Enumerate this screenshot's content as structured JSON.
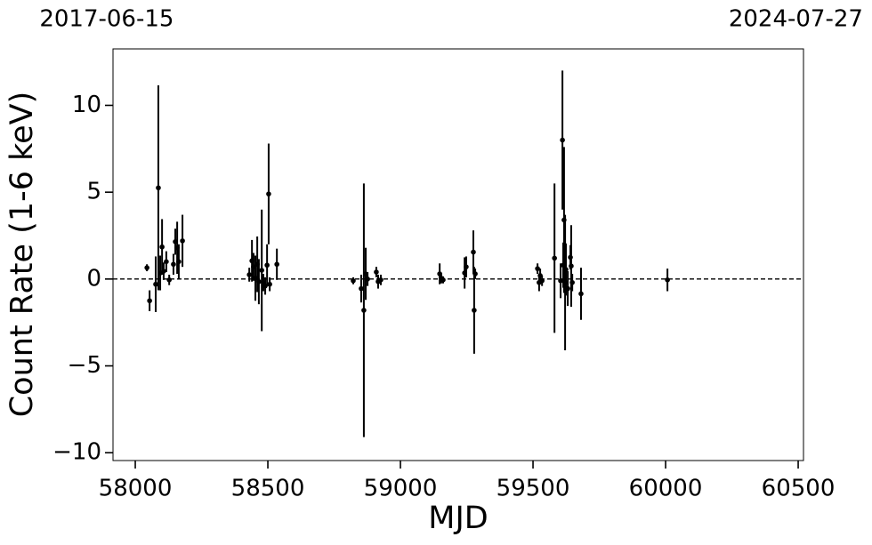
{
  "chart_data": {
    "type": "errorbar-scatter",
    "xlabel": "MJD",
    "ylabel": "Count Rate (1-6 keV)",
    "x": [
      58044,
      58054,
      58077,
      58087,
      58094,
      58101,
      58107,
      58117,
      58128,
      58144,
      58151,
      58158,
      58164,
      58178,
      58430,
      58440,
      58446,
      58453,
      58460,
      58466,
      58477,
      58483,
      58490,
      58497,
      58503,
      58507,
      58534,
      58822,
      58852,
      58862,
      58869,
      58876,
      58909,
      58916,
      58926,
      59148,
      59154,
      59161,
      59242,
      59248,
      59275,
      59278,
      59282,
      59517,
      59523,
      59527,
      59534,
      59581,
      59604,
      59611,
      59614,
      59617,
      59621,
      59624,
      59631,
      59641,
      59644,
      59648,
      59681,
      60007
    ],
    "values": [
      0.65,
      -1.25,
      -0.3,
      5.25,
      0.35,
      1.85,
      0.45,
      1.0,
      -0.05,
      0.85,
      2.15,
      1.8,
      1.0,
      2.2,
      0.25,
      1.05,
      0.7,
      0.05,
      0.85,
      -0.15,
      0.5,
      -0.2,
      -0.4,
      0.8,
      4.9,
      -0.3,
      0.85,
      -0.1,
      -0.55,
      -1.8,
      0.3,
      0.0,
      0.4,
      -0.15,
      -0.05,
      0.3,
      0.05,
      -0.05,
      0.35,
      0.7,
      1.55,
      -1.8,
      0.3,
      0.6,
      -0.2,
      0.2,
      -0.1,
      1.2,
      -0.1,
      8.0,
      0.8,
      3.4,
      -0.2,
      0.55,
      -0.55,
      1.25,
      0.75,
      -0.2,
      -0.85,
      -0.05
    ],
    "errors": [
      0.2,
      0.6,
      1.6,
      5.9,
      1.0,
      1.6,
      0.5,
      0.6,
      0.3,
      0.6,
      0.75,
      1.5,
      1.0,
      1.5,
      0.4,
      1.2,
      0.8,
      1.3,
      1.6,
      1.3,
      3.5,
      0.5,
      0.5,
      1.2,
      2.9,
      0.4,
      0.9,
      0.2,
      0.8,
      7.3,
      1.5,
      0.4,
      0.3,
      0.4,
      0.3,
      0.6,
      0.3,
      0.2,
      0.9,
      0.6,
      1.25,
      2.5,
      0.3,
      0.3,
      0.5,
      0.4,
      0.3,
      4.3,
      1.0,
      4.0,
      1.3,
      4.2,
      3.9,
      1.5,
      1.0,
      0.7,
      2.35,
      0.5,
      1.5,
      0.65
    ],
    "color": "#000000",
    "hline": 0,
    "xlim": [
      57916,
      60520
    ],
    "ylim": [
      -10.45,
      13.25
    ],
    "xticks": [
      58000,
      58500,
      59000,
      59500,
      60000,
      60500
    ],
    "yticks": [
      {
        "value": -10,
        "label": "−10"
      },
      {
        "value": -5,
        "label": "−5"
      },
      0,
      5,
      10
    ],
    "x2ticks": [
      {
        "value": 57919,
        "label": "2017-06-15"
      },
      {
        "value": 60518,
        "label": "2024-07-27"
      }
    ]
  }
}
